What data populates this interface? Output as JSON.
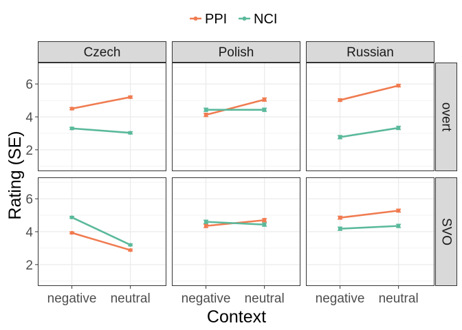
{
  "chart_data": {
    "type": "line",
    "xlabel": "Context",
    "ylabel": "Rating (SE)",
    "categories": [
      "negative",
      "neutral"
    ],
    "ylim": [
      0.7,
      7.3
    ],
    "yticks": [
      2,
      4,
      6
    ],
    "grid": true,
    "legend": {
      "placement": "top",
      "entries": [
        "PPI",
        "NCI"
      ]
    },
    "column_facets": [
      "Czech",
      "Polish",
      "Russian"
    ],
    "row_facets": [
      "overt",
      "SVO"
    ],
    "colors": {
      "PPI": "#f07b50",
      "NCI": "#5ab99b"
    },
    "panels": [
      {
        "column": "Czech",
        "row": "overt",
        "series": [
          {
            "name": "PPI",
            "values": [
              4.5,
              5.2
            ],
            "se": [
              0.07,
              0.07
            ]
          },
          {
            "name": "NCI",
            "values": [
              3.3,
              3.03
            ],
            "se": [
              0.07,
              0.07
            ]
          }
        ]
      },
      {
        "column": "Polish",
        "row": "overt",
        "series": [
          {
            "name": "PPI",
            "values": [
              4.12,
              5.05
            ],
            "se": [
              0.1,
              0.1
            ]
          },
          {
            "name": "NCI",
            "values": [
              4.43,
              4.43
            ],
            "se": [
              0.1,
              0.1
            ]
          }
        ]
      },
      {
        "column": "Russian",
        "row": "overt",
        "series": [
          {
            "name": "PPI",
            "values": [
              5.02,
              5.9
            ],
            "se": [
              0.08,
              0.08
            ]
          },
          {
            "name": "NCI",
            "values": [
              2.77,
              3.33
            ],
            "se": [
              0.1,
              0.1
            ]
          }
        ]
      },
      {
        "column": "Czech",
        "row": "SVO",
        "series": [
          {
            "name": "PPI",
            "values": [
              3.93,
              2.88
            ],
            "se": [
              0.06,
              0.06
            ]
          },
          {
            "name": "NCI",
            "values": [
              4.87,
              3.2
            ],
            "se": [
              0.06,
              0.06
            ]
          }
        ]
      },
      {
        "column": "Polish",
        "row": "SVO",
        "series": [
          {
            "name": "PPI",
            "values": [
              4.35,
              4.7
            ],
            "se": [
              0.1,
              0.1
            ]
          },
          {
            "name": "NCI",
            "values": [
              4.6,
              4.43
            ],
            "se": [
              0.1,
              0.1
            ]
          }
        ]
      },
      {
        "column": "Russian",
        "row": "SVO",
        "series": [
          {
            "name": "PPI",
            "values": [
              4.85,
              5.28
            ],
            "se": [
              0.09,
              0.09
            ]
          },
          {
            "name": "NCI",
            "values": [
              4.18,
              4.35
            ],
            "se": [
              0.1,
              0.1
            ]
          }
        ]
      }
    ]
  }
}
